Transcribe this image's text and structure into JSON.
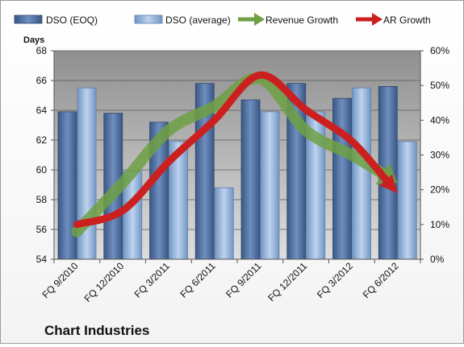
{
  "chart_data": {
    "type": "bar",
    "title": "Chart Industries",
    "ylabel": "Days",
    "categories": [
      "FQ 9/2010",
      "FQ 12/2010",
      "FQ 3/2011",
      "FQ 6/2011",
      "FQ 9/2011",
      "FQ 12/2011",
      "FQ 3/2012",
      "FQ 6/2012"
    ],
    "series": [
      {
        "name": "DSO (EOQ)",
        "type": "bar",
        "axis": "left",
        "values": [
          63.9,
          63.8,
          63.2,
          65.8,
          64.7,
          65.8,
          64.8,
          65.6
        ]
      },
      {
        "name": "DSO (average)",
        "type": "bar",
        "axis": "left",
        "values": [
          65.5,
          59.9,
          61.9,
          58.8,
          63.9,
          63.9,
          65.5,
          61.9
        ]
      },
      {
        "name": "Revenue Growth",
        "type": "line",
        "axis": "right",
        "values": [
          "8%",
          "22%",
          "37%",
          "44%",
          "52%",
          "37%",
          "30%",
          "22%"
        ]
      },
      {
        "name": "AR Growth",
        "type": "line",
        "axis": "right",
        "values": [
          "10%",
          "14%",
          "28%",
          "40%",
          "53%",
          "43%",
          "34%",
          "19%"
        ]
      }
    ],
    "ylim_left": [
      54,
      68
    ],
    "yticks_left": [
      "54",
      "56",
      "58",
      "60",
      "62",
      "64",
      "66",
      "68"
    ],
    "ylim_right": [
      0,
      0.6
    ],
    "yticks_right": [
      "0%",
      "10%",
      "20%",
      "30%",
      "40%",
      "50%",
      "60%"
    ],
    "legend_position": "top",
    "grid": true,
    "colors": {
      "bar_eoq": "#4a6a9c",
      "bar_avg": "#8fb0d8",
      "revenue_line": "#6fa043",
      "ar_line": "#cc2020",
      "plot_top": "#8f8f8f",
      "plot_bottom": "#dedede"
    }
  }
}
